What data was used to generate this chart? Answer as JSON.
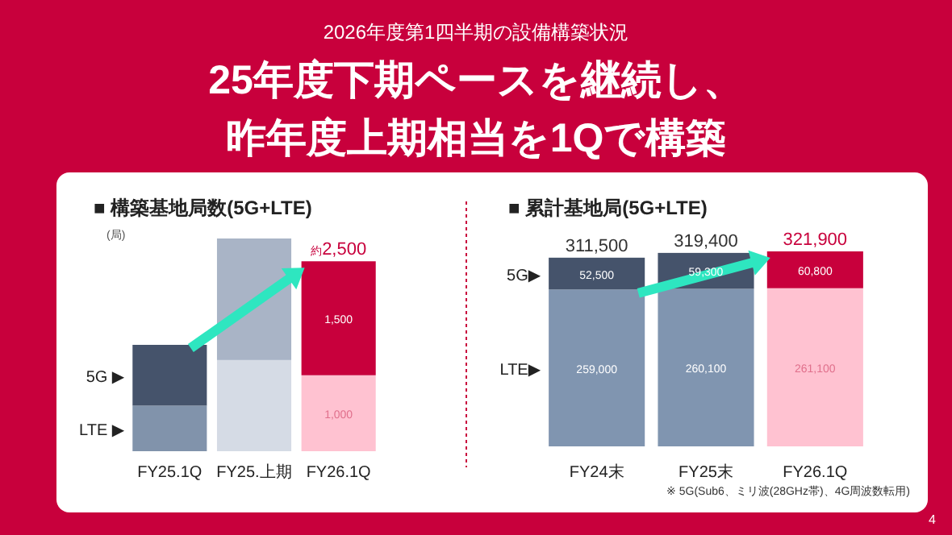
{
  "chart_data": [
    {
      "type": "other",
      "subtitle": "2026年度第1四半期の設備構築状況",
      "title": "25年度下期ペースを継続し、昨年度上期相当を1Qで構築",
      "annotations": [
        "4"
      ]
    },
    {
      "type": "bar",
      "stacked": true,
      "title": "■  構築基地局数(5G+LTE)",
      "ylabel": "(局)",
      "categories": [
        "FY25.1Q",
        "FY25.上期",
        "FY26.1Q"
      ],
      "tick_labels": "x",
      "series": [
        {
          "name": "LTE ▶",
          "colors": [
            "#8193ab",
            "#d5dbe5",
            "#ffc2d1"
          ],
          "values": [
            600,
            1200,
            1000
          ],
          "value_labels": [
            null,
            null,
            "1,000"
          ]
        },
        {
          "name": "5G ▶",
          "colors": [
            "#45536b",
            "#a9b4c6",
            "#c8003c"
          ],
          "values": [
            800,
            1600,
            1500
          ],
          "value_labels": [
            null,
            null,
            "1,500"
          ]
        }
      ],
      "totals": [
        null,
        null,
        "約2,500"
      ]
    },
    {
      "type": "bar",
      "stacked": true,
      "title": "■  累計基地局(5G+LTE)",
      "categories": [
        "FY24末",
        "FY25末",
        "FY26.1Q"
      ],
      "tick_labels": "x",
      "series": [
        {
          "name": "LTE▶",
          "colors": [
            "#8095b0",
            "#8095b0",
            "#ffc2d1"
          ],
          "values": [
            259000,
            260100,
            261100
          ],
          "value_labels": [
            "259,000",
            "260,100",
            "261,100"
          ]
        },
        {
          "name": "5G▶",
          "colors": [
            "#45536b",
            "#45536b",
            "#c8003c"
          ],
          "values": [
            52500,
            59300,
            60800
          ],
          "value_labels": [
            "52,500",
            "59,300",
            "60,800"
          ]
        }
      ],
      "totals": [
        "311,500",
        "319,400",
        "321,900"
      ],
      "annotations": [
        "※ 5G(Sub6、ミリ波(28GHz帯)、4G周波数転用)"
      ]
    }
  ]
}
